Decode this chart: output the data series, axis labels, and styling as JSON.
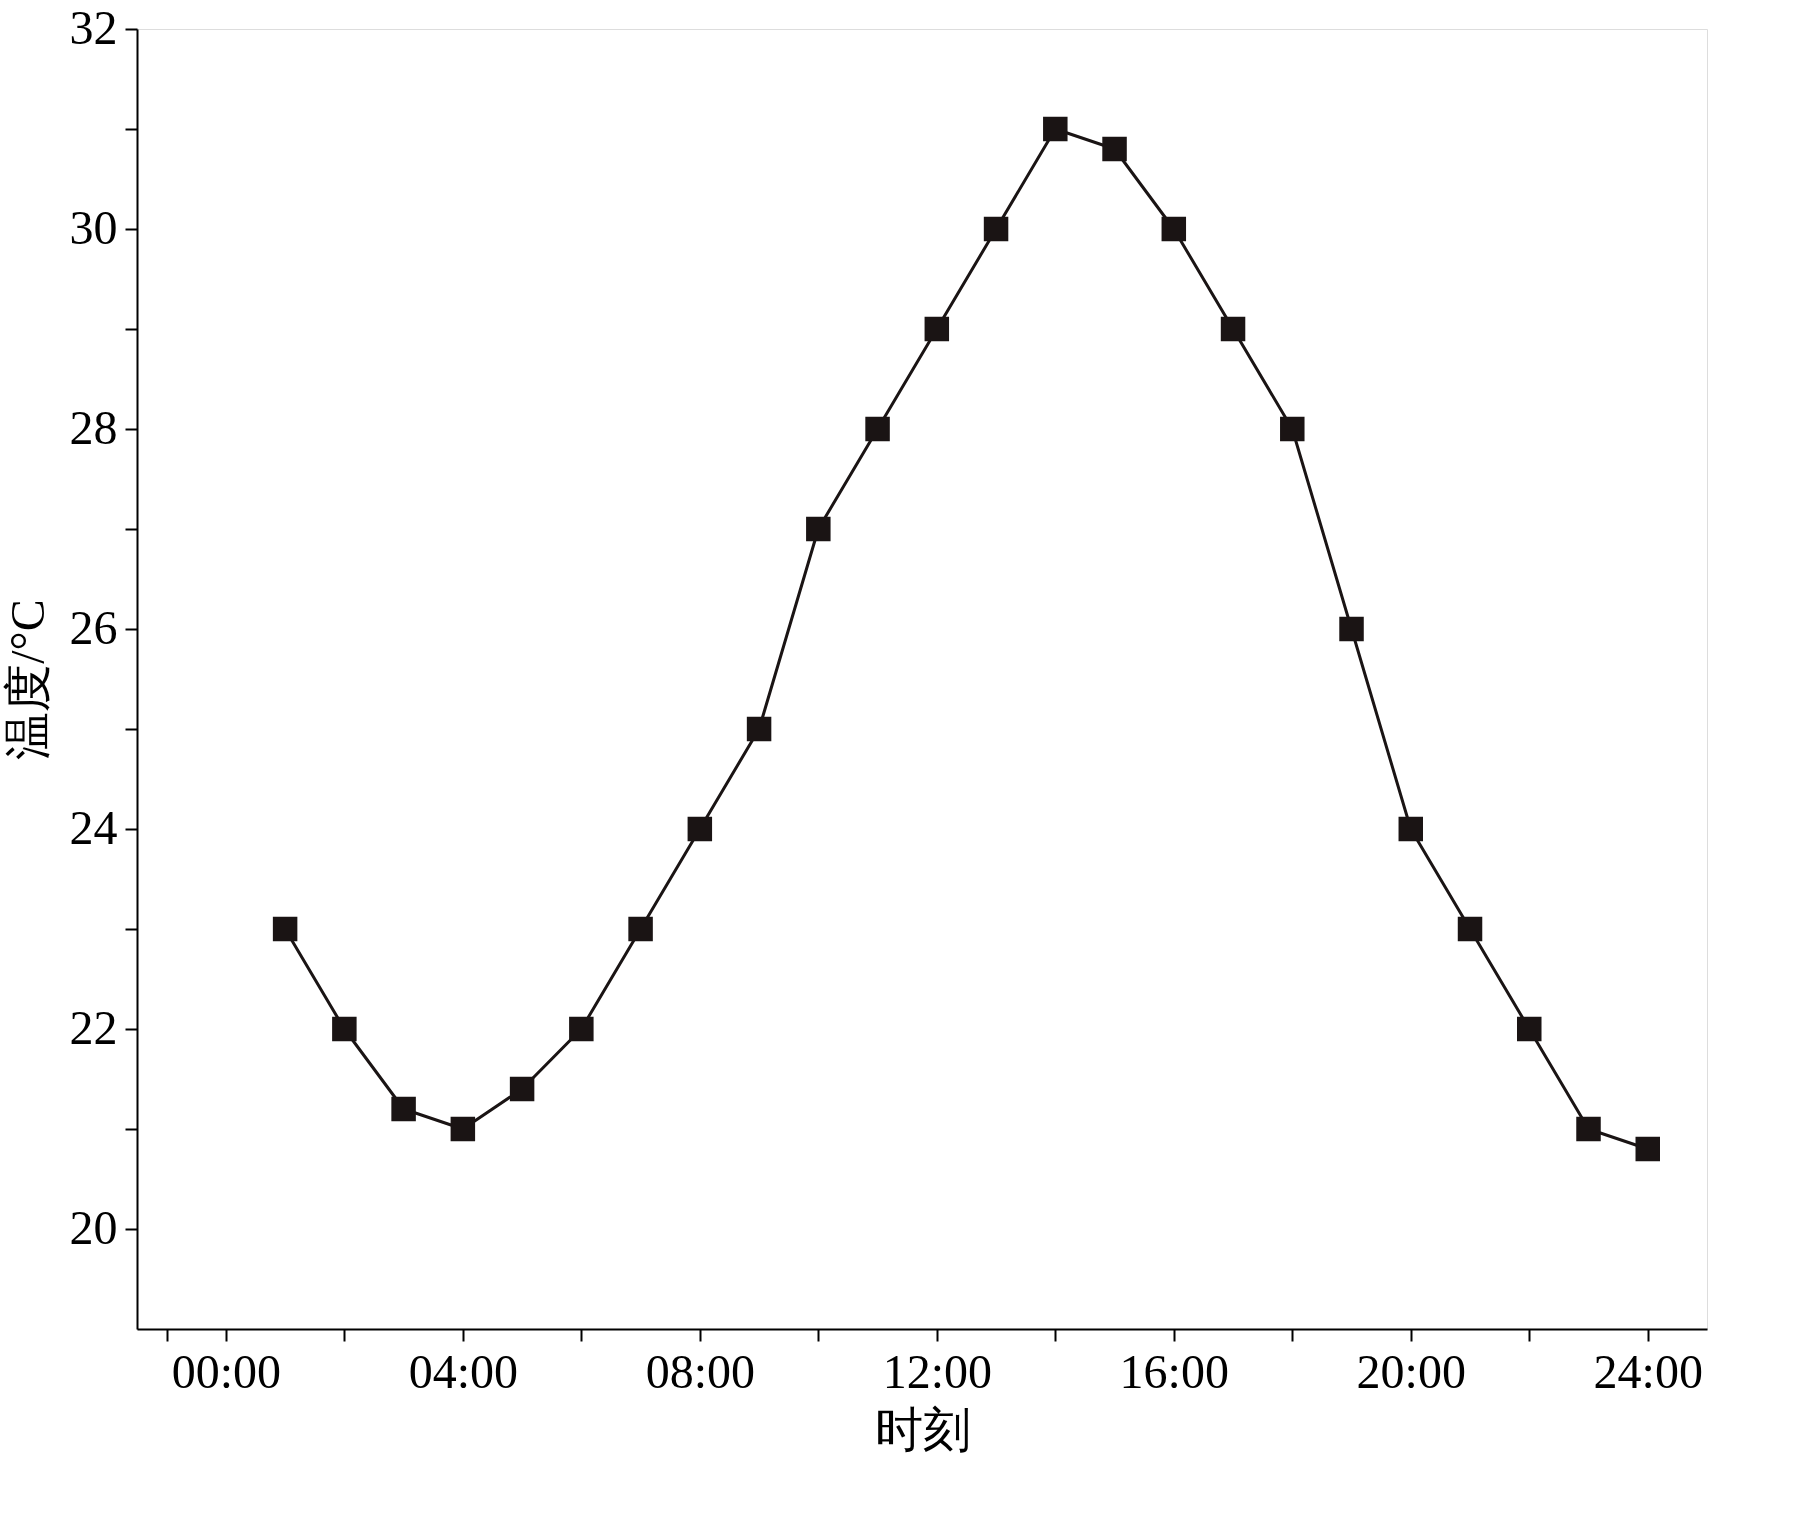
{
  "chart_data": {
    "type": "line",
    "xlabel": "时刻",
    "ylabel": "温度/°C",
    "x": [
      1,
      2,
      3,
      4,
      5,
      6,
      7,
      8,
      9,
      10,
      11,
      12,
      13,
      14,
      15,
      16,
      17,
      18,
      19,
      20,
      21,
      22,
      23,
      24
    ],
    "series": [
      {
        "color": "#1a1414",
        "values": [
          23,
          22,
          21.2,
          21,
          21.4,
          22,
          23,
          24,
          25,
          27,
          28,
          29,
          30,
          31,
          30.8,
          30,
          29,
          28,
          26,
          24,
          23,
          22,
          21,
          20.8
        ]
      }
    ],
    "xlim": [
      -1.5,
      25
    ],
    "xticks": [
      {
        "value": -1,
        "label": null
      },
      {
        "value": 0,
        "label": "00:00"
      },
      {
        "value": 2,
        "label": null
      },
      {
        "value": 4,
        "label": "04:00"
      },
      {
        "value": 6,
        "label": null
      },
      {
        "value": 8,
        "label": "08:00"
      },
      {
        "value": 10,
        "label": null
      },
      {
        "value": 12,
        "label": "12:00"
      },
      {
        "value": 14,
        "label": null
      },
      {
        "value": 16,
        "label": "16:00"
      },
      {
        "value": 18,
        "label": null
      },
      {
        "value": 20,
        "label": "20:00"
      },
      {
        "value": 22,
        "label": null
      },
      {
        "value": 24,
        "label": "24:00"
      }
    ],
    "ylim": [
      19,
      32
    ],
    "yticks": [
      20,
      {
        "value": 21,
        "label": null
      },
      22,
      {
        "value": 23,
        "label": null
      },
      24,
      {
        "value": 25,
        "label": null
      },
      26,
      {
        "value": 27,
        "label": null
      },
      28,
      {
        "value": 29,
        "label": null
      },
      30,
      {
        "value": 31,
        "label": null
      },
      32
    ],
    "marker": "square",
    "line_style": "solid",
    "grid": false
  }
}
